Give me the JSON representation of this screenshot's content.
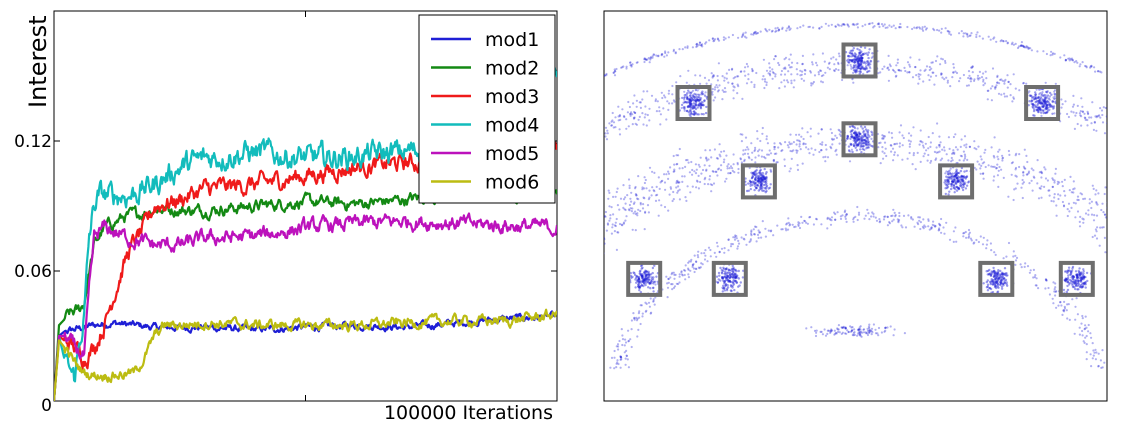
{
  "chart_data": [
    {
      "type": "line",
      "xlabel": "100000 Iterations",
      "ylabel": "Interest",
      "xlim": [
        0,
        100000
      ],
      "ylim": [
        0,
        0.18
      ],
      "yticks": [
        "0",
        "0.06",
        "0.12"
      ],
      "ytick_values": [
        0,
        0.06,
        0.12
      ],
      "legend_position": "top-right",
      "series": [
        {
          "name": "mod1",
          "color": "#1f1fd6",
          "x": [
            0,
            1000,
            2000,
            4000,
            6000,
            8000,
            12000,
            16000,
            20000,
            30000,
            40000,
            50000,
            60000,
            70000,
            80000,
            90000,
            100000
          ],
          "y": [
            0,
            0.03,
            0.032,
            0.033,
            0.034,
            0.035,
            0.036,
            0.035,
            0.034,
            0.034,
            0.033,
            0.034,
            0.035,
            0.034,
            0.036,
            0.038,
            0.039
          ]
        },
        {
          "name": "mod2",
          "color": "#138913",
          "x": [
            0,
            1000,
            3000,
            5000,
            6000,
            7000,
            8000,
            10000,
            14000,
            18000,
            20000,
            25000,
            30000,
            40000,
            50000,
            60000,
            70000,
            80000,
            90000,
            100000
          ],
          "y": [
            0,
            0.035,
            0.04,
            0.042,
            0.045,
            0.06,
            0.072,
            0.08,
            0.085,
            0.087,
            0.089,
            0.088,
            0.088,
            0.09,
            0.092,
            0.091,
            0.093,
            0.096,
            0.095,
            0.097
          ]
        },
        {
          "name": "mod3",
          "color": "#ef1a1a",
          "x": [
            0,
            1000,
            2000,
            4000,
            6000,
            8000,
            10000,
            12000,
            15000,
            18000,
            20000,
            25000,
            30000,
            40000,
            50000,
            60000,
            70000,
            80000,
            90000,
            100000
          ],
          "y": [
            0,
            0.03,
            0.028,
            0.025,
            0.02,
            0.025,
            0.035,
            0.05,
            0.07,
            0.08,
            0.09,
            0.093,
            0.098,
            0.1,
            0.104,
            0.108,
            0.11,
            0.11,
            0.112,
            0.115
          ]
        },
        {
          "name": "mod4",
          "color": "#12bcbc",
          "x": [
            0,
            1000,
            2000,
            4000,
            6000,
            7000,
            8000,
            9000,
            12000,
            15000,
            20000,
            25000,
            30000,
            40000,
            50000,
            60000,
            70000,
            80000,
            90000,
            95000,
            100000
          ],
          "y": [
            0,
            0.03,
            0.02,
            0.01,
            0.04,
            0.075,
            0.09,
            0.095,
            0.095,
            0.095,
            0.1,
            0.108,
            0.112,
            0.115,
            0.112,
            0.113,
            0.115,
            0.117,
            0.115,
            0.14,
            0.15
          ]
        },
        {
          "name": "mod5",
          "color": "#bc12bc",
          "x": [
            0,
            1000,
            2000,
            4000,
            6000,
            7000,
            8000,
            10000,
            15000,
            20000,
            25000,
            30000,
            40000,
            50000,
            60000,
            70000,
            80000,
            90000,
            100000
          ],
          "y": [
            0,
            0.03,
            0.03,
            0.025,
            0.02,
            0.05,
            0.075,
            0.08,
            0.075,
            0.072,
            0.072,
            0.075,
            0.076,
            0.08,
            0.082,
            0.083,
            0.082,
            0.081,
            0.08
          ]
        },
        {
          "name": "mod6",
          "color": "#bcbc12",
          "x": [
            0,
            1000,
            2000,
            4000,
            6000,
            8000,
            12000,
            16000,
            18000,
            20000,
            22000,
            25000,
            30000,
            40000,
            50000,
            60000,
            70000,
            80000,
            90000,
            100000
          ],
          "y": [
            0,
            0.028,
            0.025,
            0.018,
            0.013,
            0.012,
            0.012,
            0.013,
            0.02,
            0.03,
            0.035,
            0.035,
            0.036,
            0.035,
            0.035,
            0.035,
            0.036,
            0.037,
            0.037,
            0.04
          ]
        }
      ]
    },
    {
      "type": "scatter",
      "point_color": "#1f1fd6",
      "box_color": "#6e6e6e",
      "description_points": "dense point cloud of explored positions forming concentric semicircular arcs",
      "boxes": [
        {
          "x": 0.508,
          "y": 0.873
        },
        {
          "x": 0.178,
          "y": 0.764
        },
        {
          "x": 0.871,
          "y": 0.764
        },
        {
          "x": 0.508,
          "y": 0.671
        },
        {
          "x": 0.308,
          "y": 0.563
        },
        {
          "x": 0.7,
          "y": 0.563
        },
        {
          "x": 0.08,
          "y": 0.313
        },
        {
          "x": 0.25,
          "y": 0.313
        },
        {
          "x": 0.78,
          "y": 0.313
        },
        {
          "x": 0.94,
          "y": 0.313
        }
      ]
    }
  ]
}
